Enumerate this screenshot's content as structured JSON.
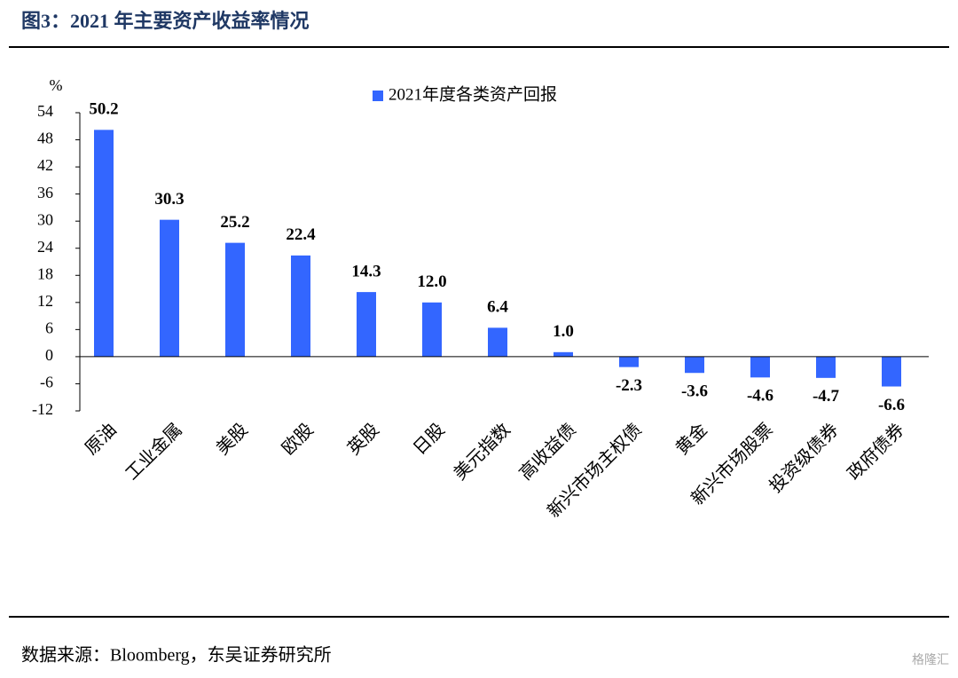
{
  "chart_data": {
    "type": "bar",
    "title": "图3：2021 年主要资产收益率情况",
    "y_unit": "%",
    "categories": [
      "原油",
      "工业金属",
      "美股",
      "欧股",
      "英股",
      "日股",
      "美元指数",
      "高收益债",
      "新兴市场主权债",
      "黄金",
      "新兴市场股票",
      "投资级债券",
      "政府债券"
    ],
    "series": [
      {
        "name": "2021年度各类资产回报",
        "color": "#3366ff",
        "values": [
          50.2,
          30.3,
          25.2,
          22.4,
          14.3,
          12.0,
          6.4,
          1.0,
          -2.3,
          -3.6,
          -4.6,
          -4.7,
          -6.6
        ],
        "value_labels": [
          "50.2",
          "30.3",
          "25.2",
          "22.4",
          "14.3",
          "12.0",
          "6.4",
          "1.0",
          "-2.3",
          "-3.6",
          "-4.6",
          "-4.7",
          "-6.6"
        ]
      }
    ],
    "ylim": [
      -12,
      54
    ],
    "yticks": [
      -12,
      -6,
      0,
      6,
      12,
      18,
      24,
      30,
      36,
      42,
      48,
      54
    ],
    "grid": false,
    "legend": "top"
  },
  "source": "数据来源：Bloomberg，东吴证券研究所",
  "watermark": "格隆汇"
}
